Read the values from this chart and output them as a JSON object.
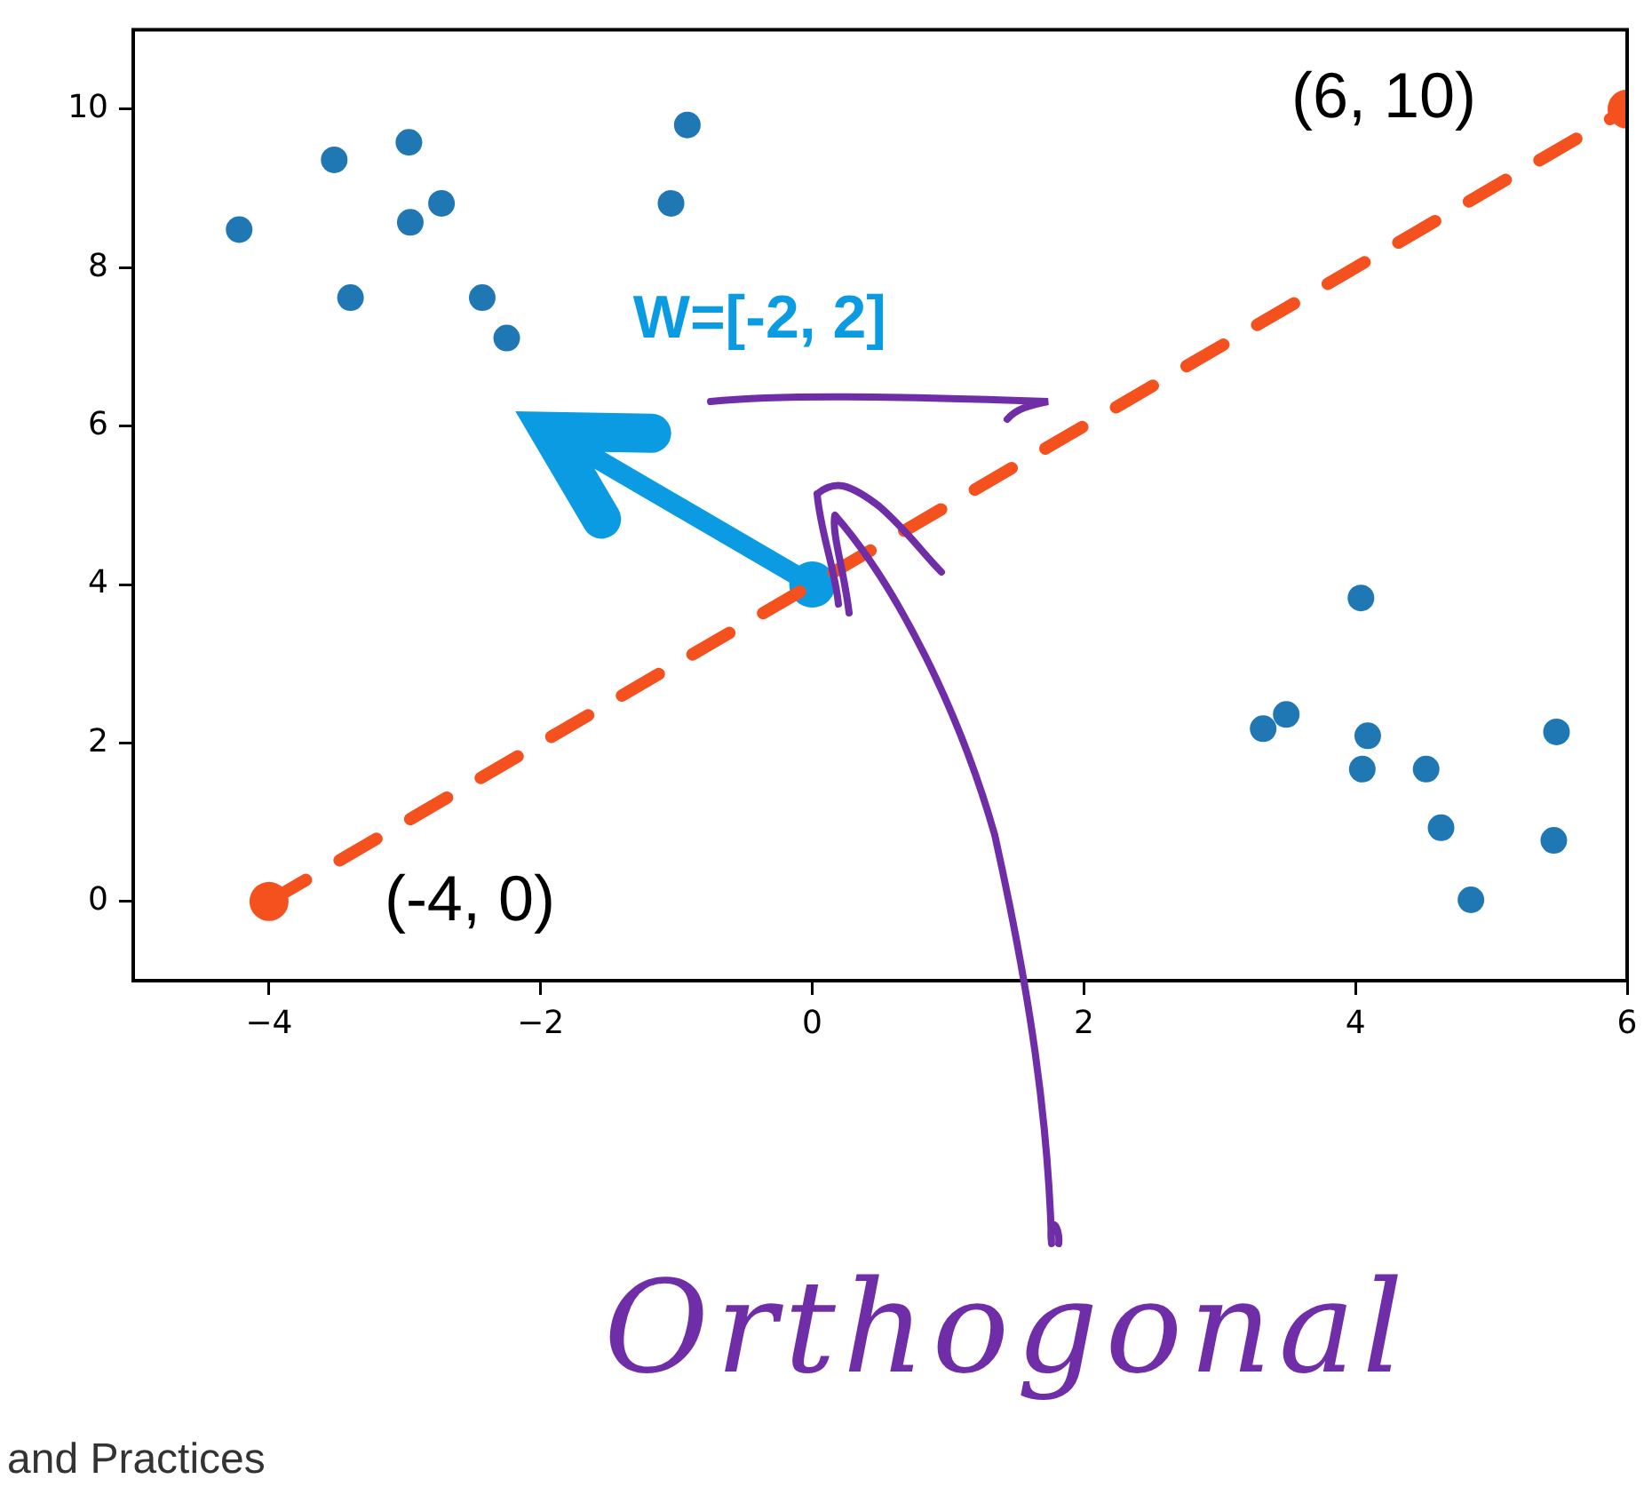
{
  "chart_data": {
    "type": "scatter",
    "xlim": [
      -5,
      6
    ],
    "ylim": [
      -1,
      11
    ],
    "xticks": [
      {
        "value": -4,
        "label": "−4"
      },
      {
        "value": -2,
        "label": "−2"
      },
      0,
      2,
      4,
      6
    ],
    "yticks": [
      0,
      2,
      4,
      6,
      8,
      10
    ],
    "grid": false,
    "legend": false,
    "series": [
      {
        "color": "#1f77b4",
        "marker": "circle",
        "x": [
          -4.22,
          -3.52,
          -2.97,
          -3.4,
          -2.96,
          -2.73,
          -2.43,
          -2.25,
          -1.04,
          -0.92,
          3.32,
          3.49,
          4.04,
          4.09,
          4.05,
          4.52,
          4.63,
          4.85,
          5.48,
          5.46
        ],
        "values": [
          8.48,
          9.36,
          9.58,
          7.62,
          8.57,
          8.81,
          7.62,
          7.11,
          8.81,
          9.8,
          2.18,
          2.36,
          3.83,
          2.09,
          1.67,
          1.67,
          0.93,
          0.02,
          2.14,
          0.77
        ]
      },
      {
        "type": "line",
        "color": "#f4511e",
        "marker": "circle",
        "line_style": "dashed",
        "x": [
          -4,
          6
        ],
        "values": [
          0,
          10
        ]
      },
      {
        "type": "line",
        "color": "#0a9be3",
        "marker": "none",
        "line_style": "solid",
        "x": [
          0,
          -2
        ],
        "values": [
          4,
          6
        ]
      },
      {
        "color": "#0a9be3",
        "marker": "circle",
        "x": [
          0
        ],
        "values": [
          4
        ]
      }
    ],
    "annotations": [
      {
        "text": "(6, 10)",
        "x": 6,
        "y": 10
      },
      {
        "text": "(-4, 0)",
        "x": -4,
        "y": 0
      },
      "W=[-2, 2]",
      "Orthogonal",
      "and Practices"
    ]
  }
}
